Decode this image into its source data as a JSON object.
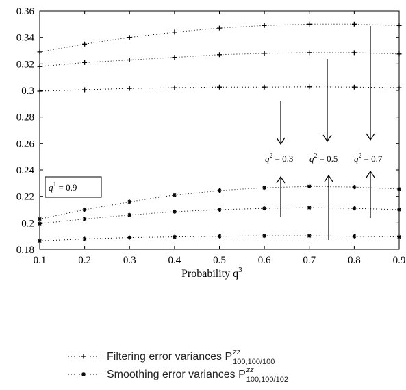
{
  "chart_data": {
    "type": "line",
    "xlabel": "Probability q",
    "xlabel_sup": "3",
    "x": [
      0.1,
      0.2,
      0.3,
      0.4,
      0.5,
      0.6,
      0.7,
      0.8,
      0.9
    ],
    "xlim": [
      0.1,
      0.9
    ],
    "ylim": [
      0.18,
      0.36
    ],
    "x_ticks": [
      "0.1",
      "0.2",
      "0.3",
      "0.4",
      "0.5",
      "0.6",
      "0.7",
      "0.8",
      "0.9"
    ],
    "y_ticks": [
      "0.18",
      "0.2",
      "0.22",
      "0.24",
      "0.26",
      "0.28",
      "0.3",
      "0.32",
      "0.34",
      "0.36"
    ],
    "grid": false,
    "series": [
      {
        "group": "filtering",
        "q2": 0.7,
        "marker": "plus",
        "values": [
          0.329,
          0.335,
          0.34,
          0.344,
          0.347,
          0.349,
          0.35,
          0.35,
          0.349
        ]
      },
      {
        "group": "filtering",
        "q2": 0.5,
        "marker": "plus",
        "values": [
          0.318,
          0.321,
          0.323,
          0.325,
          0.327,
          0.328,
          0.3285,
          0.3285,
          0.3275
        ]
      },
      {
        "group": "filtering",
        "q2": 0.3,
        "marker": "plus",
        "values": [
          0.2995,
          0.3005,
          0.3015,
          0.302,
          0.3025,
          0.3025,
          0.3027,
          0.3025,
          0.302
        ]
      },
      {
        "group": "smoothing",
        "q2": 0.7,
        "marker": "star",
        "values": [
          0.203,
          0.21,
          0.216,
          0.221,
          0.2245,
          0.2265,
          0.2275,
          0.227,
          0.2255
        ]
      },
      {
        "group": "smoothing",
        "q2": 0.5,
        "marker": "star",
        "values": [
          0.1995,
          0.203,
          0.206,
          0.2085,
          0.21,
          0.211,
          0.2115,
          0.211,
          0.21
        ]
      },
      {
        "group": "smoothing",
        "q2": 0.3,
        "marker": "star",
        "values": [
          0.1865,
          0.188,
          0.189,
          0.1895,
          0.19,
          0.1903,
          0.1903,
          0.19,
          0.1895
        ]
      }
    ],
    "annotations": {
      "boxed": {
        "text": "= 0.9",
        "var": "q",
        "sup": "1"
      },
      "q2_labels": [
        {
          "text": "= 0.3",
          "var": "q",
          "sup": "2"
        },
        {
          "text": "= 0.5",
          "var": "q",
          "sup": "2"
        },
        {
          "text": "= 0.7",
          "var": "q",
          "sup": "2"
        }
      ]
    },
    "legend": {
      "placement": "bottom-left",
      "entries": [
        {
          "label": "Filtering error variances P",
          "sup": "zz",
          "sub": "100,100/100",
          "marker": "plus"
        },
        {
          "label": "Smoothing error variances P",
          "sup": "zz",
          "sub": "100,100/102",
          "marker": "star"
        }
      ]
    }
  }
}
